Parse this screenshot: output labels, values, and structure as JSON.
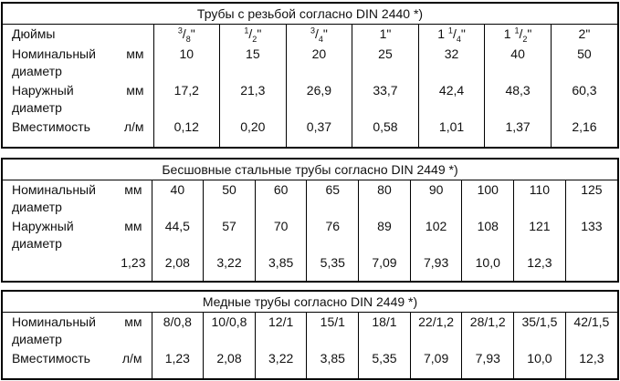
{
  "tables": [
    {
      "title": "Трубы с резьбой согласно DIN 2440 *)",
      "rows": [
        {
          "label": "Дюймы",
          "values": [
            {
              "num": "3",
              "sep": "/",
              "den": "8",
              "mark": "\""
            },
            {
              "num": "1",
              "sep": "/",
              "den": "2",
              "mark": "\""
            },
            {
              "num": "3",
              "sep": "/",
              "den": "4",
              "mark": "\""
            },
            "1\"",
            {
              "whole": "1",
              "num": "1",
              "sep": "/",
              "den": "4",
              "mark": "\""
            },
            {
              "whole": "1",
              "num": "1",
              "sep": "/",
              "den": "2",
              "mark": "\""
            },
            "2\""
          ]
        },
        {
          "label": "Номинальный диаметр",
          "unit": "мм",
          "values": [
            "10",
            "15",
            "20",
            "25",
            "32",
            "40",
            "50"
          ]
        },
        {
          "label": "Наружный диаметр",
          "unit": "мм",
          "values": [
            "17,2",
            "21,3",
            "26,9",
            "33,7",
            "42,4",
            "48,3",
            "60,3"
          ]
        },
        {
          "label": "Вместимость",
          "unit": "л/м",
          "values": [
            "0,12",
            "0,20",
            "0,37",
            "0,58",
            "1,01",
            "1,37",
            "2,16"
          ]
        }
      ]
    },
    {
      "title": "Бесшовные стальные трубы согласно DIN 2449 *)",
      "rows": [
        {
          "label": "Номинальный диаметр",
          "unit": "мм",
          "values": [
            "40",
            "50",
            "60",
            "65",
            "80",
            "90",
            "100",
            "110",
            "125"
          ]
        },
        {
          "label": "Наружный диаметр",
          "unit": "мм",
          "values": [
            "44,5",
            "57",
            "70",
            "76",
            "89",
            "102",
            "108",
            "121",
            "133"
          ]
        },
        {
          "lead": "1,23",
          "values": [
            "2,08",
            "3,22",
            "3,85",
            "5,35",
            "7,09",
            "7,93",
            "10,0",
            "12,3",
            null
          ]
        }
      ]
    },
    {
      "title": "Медные трубы согласно DIN 2449 *)",
      "rows": [
        {
          "label": "Номинальный диаметр",
          "unit": "мм",
          "values": [
            "8/0,8",
            "10/0,8",
            "12/1",
            "15/1",
            "18/1",
            "22/1,2",
            "28/1,2",
            "35/1,5",
            "42/1,5"
          ]
        },
        {
          "label": "Вместимость",
          "unit": "л/м",
          "values": [
            "1,23",
            "2,08",
            "3,22",
            "3,85",
            "5,35",
            "7,09",
            "7,93",
            "10,0",
            "12,3"
          ]
        }
      ]
    }
  ]
}
